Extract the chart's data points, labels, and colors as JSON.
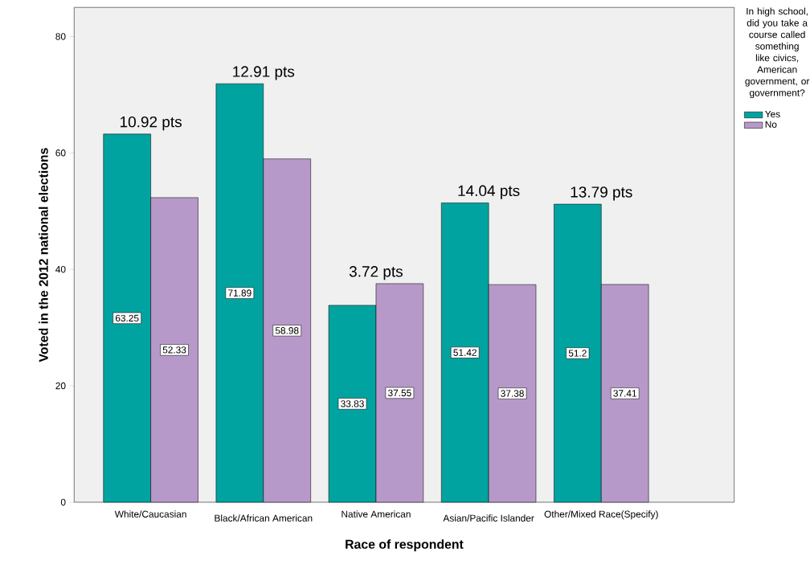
{
  "chart_data": {
    "type": "bar",
    "xlabel": "Race of respondent",
    "ylabel": "Voted in the 2012 national elections",
    "legend_title": "In high school, did you take a course called something like civics, American government, or government?",
    "categories": [
      "White/Caucasian",
      "Black/African American",
      "Native American",
      "Asian/Pacific Islander",
      "Other/Mixed Race(Specify)"
    ],
    "series": [
      {
        "name": "Yes",
        "color": "#00a3a0",
        "values": [
          63.25,
          71.89,
          33.83,
          51.42,
          51.2
        ]
      },
      {
        "name": "No",
        "color": "#b799c9",
        "values": [
          52.33,
          58.98,
          37.55,
          37.38,
          37.41
        ]
      }
    ],
    "ylim": [
      0,
      85
    ],
    "yticks": [
      0,
      20,
      40,
      60,
      80
    ],
    "data_labels": true,
    "legend": "right",
    "grid": false,
    "annotations": [
      "10.92 pts",
      "12.91 pts",
      "3.72 pts",
      "14.04 pts",
      "13.79 pts"
    ]
  }
}
